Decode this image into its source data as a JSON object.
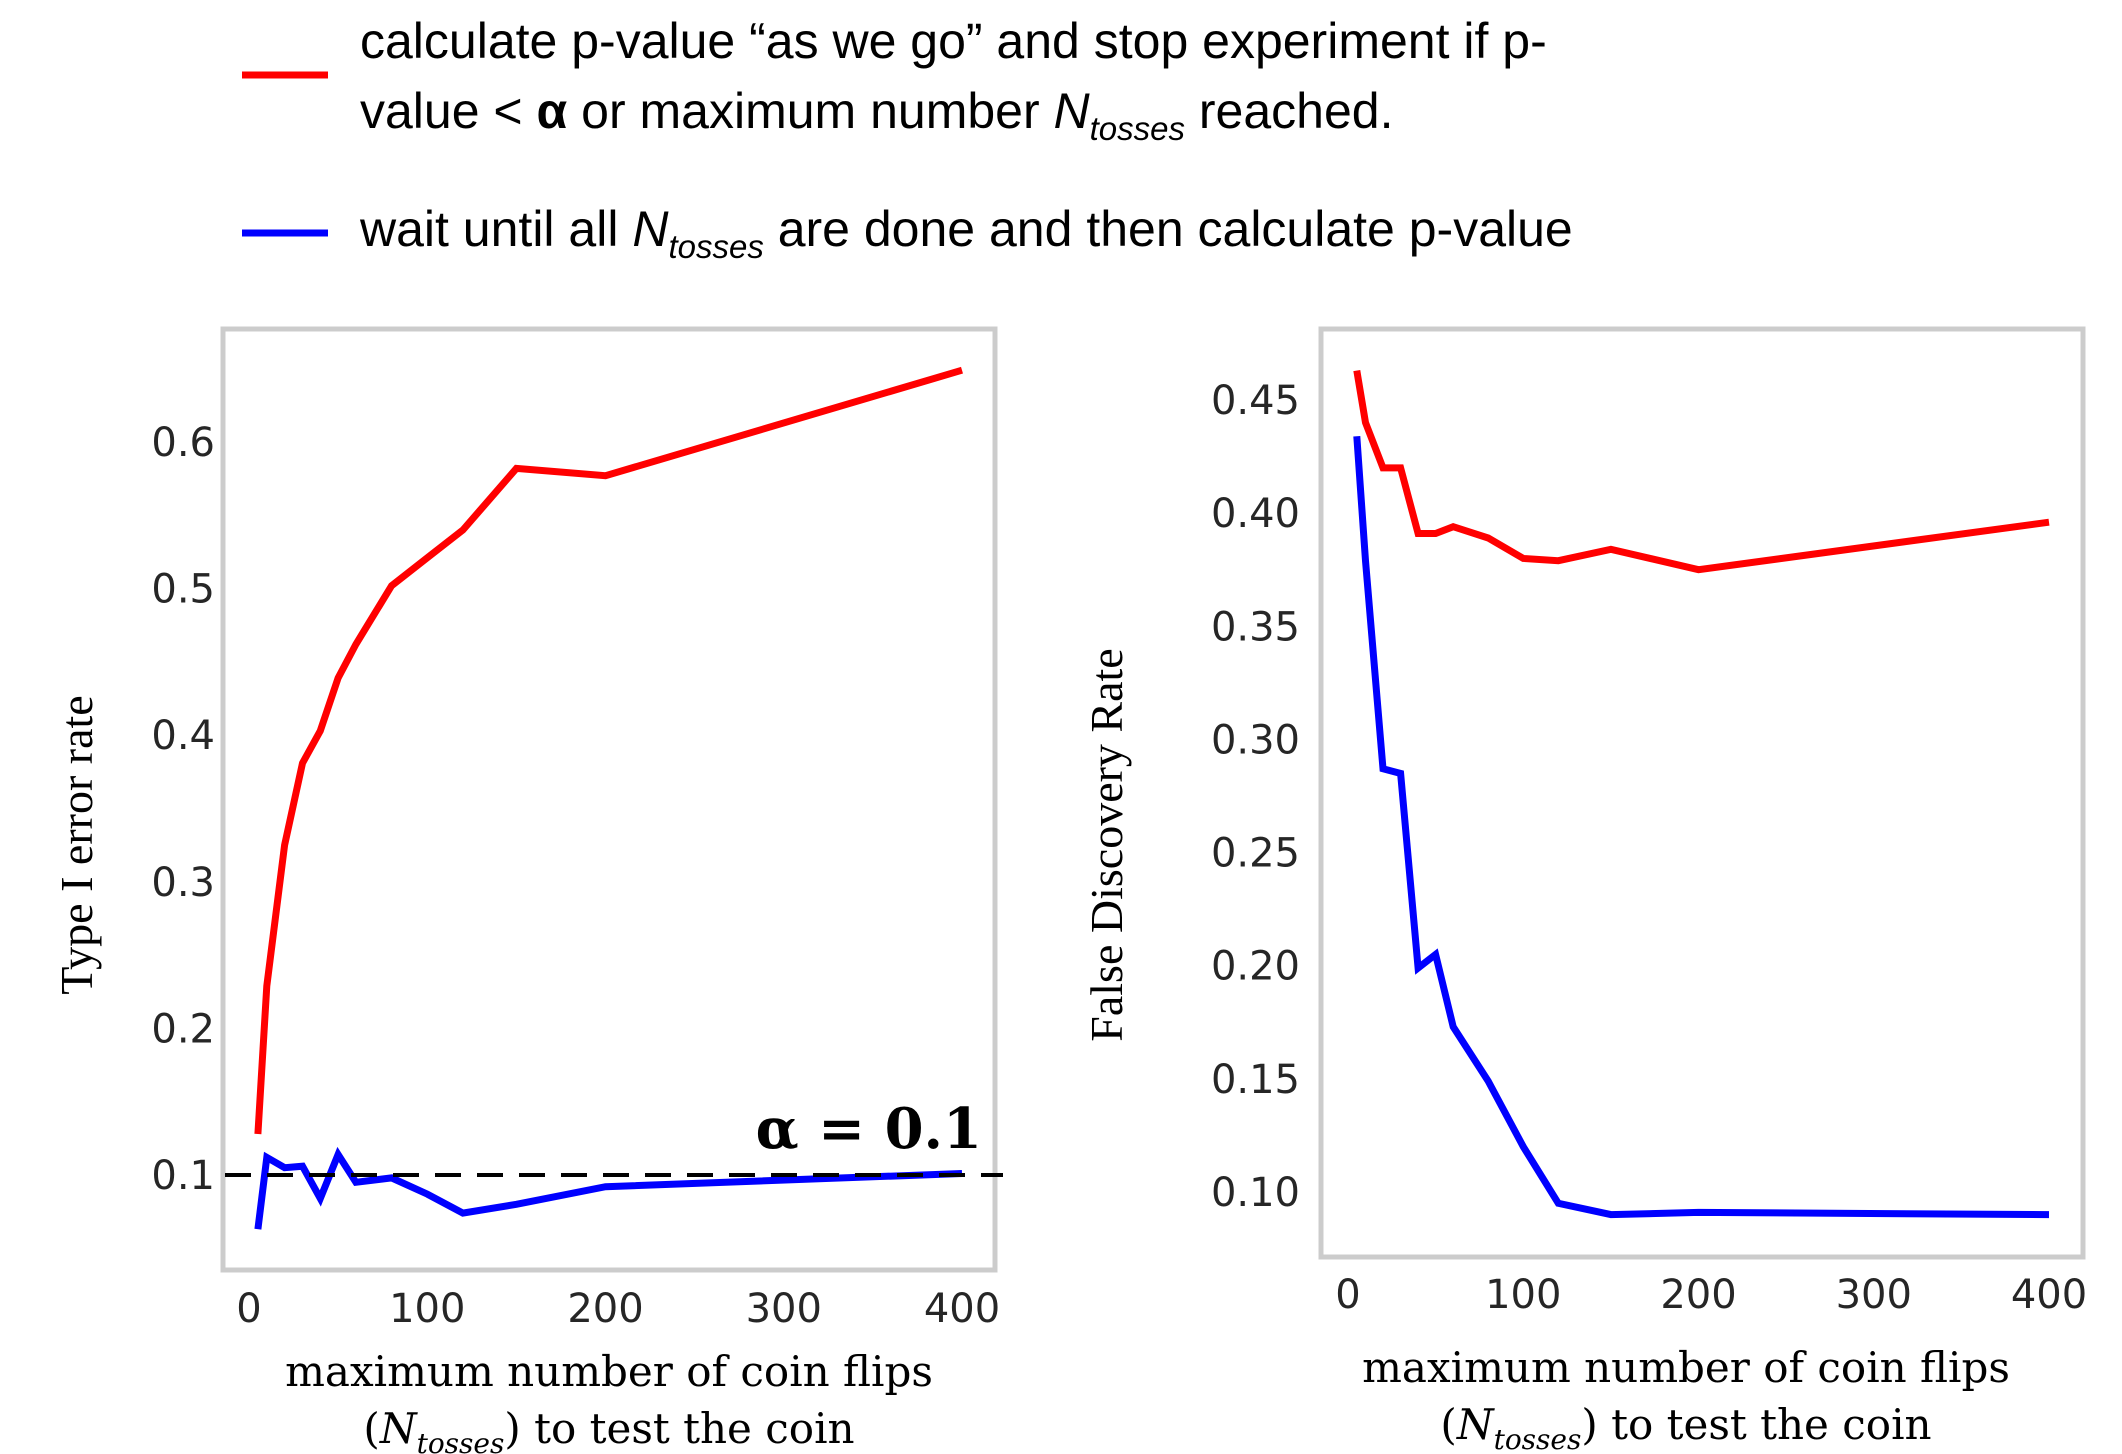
{
  "legend": {
    "items": [
      {
        "color": "#ff0000",
        "line1": "calculate p-value “as we go” and stop experiment if p-",
        "line2_pre": "value < ",
        "line2_alpha": "α",
        "line2_mid": " or maximum number ",
        "line2_N": "N",
        "line2_sub": "tosses",
        "line2_post": " reached."
      },
      {
        "color": "#0000ff",
        "pre": "wait until all ",
        "N": "N",
        "sub": "tosses",
        "post": " are done and then calculate p-value"
      }
    ]
  },
  "chart_data": [
    {
      "type": "line",
      "ylabel": "Type I error rate",
      "xlabel_line1": "maximum number of coin flips",
      "xlabel_line2_pre": "(",
      "xlabel_line2_N": "N",
      "xlabel_line2_sub": "tosses",
      "xlabel_line2_post": ") to test the coin",
      "xlim": [
        0,
        400
      ],
      "ylim": [
        0.04,
        0.68
      ],
      "xticks": [
        0,
        100,
        200,
        300,
        400
      ],
      "xtick_labels": [
        "0",
        "100",
        "200",
        "300",
        "400"
      ],
      "yticks": [
        0.1,
        0.2,
        0.3,
        0.4,
        0.5,
        0.6
      ],
      "ytick_labels": [
        "0.1",
        "0.2",
        "0.3",
        "0.4",
        "0.5",
        "0.6"
      ],
      "grid": false,
      "reference_line": {
        "y": 0.1,
        "style": "dashed",
        "color": "#000000",
        "label": "α = 0.1"
      },
      "x": [
        5,
        10,
        20,
        30,
        40,
        50,
        60,
        80,
        100,
        120,
        150,
        200,
        400
      ],
      "series": [
        {
          "name": "calculate p-value as we go",
          "color": "#ff0000",
          "values": [
            0.128,
            0.229,
            0.325,
            0.381,
            0.403,
            0.439,
            0.462,
            0.502,
            0.521,
            0.54,
            0.582,
            0.577,
            0.649
          ]
        },
        {
          "name": "wait until all tosses done",
          "color": "#0000ff",
          "values": [
            0.063,
            0.112,
            0.105,
            0.106,
            0.084,
            0.114,
            0.095,
            0.098,
            0.087,
            0.074,
            0.08,
            0.092,
            0.101
          ]
        }
      ]
    },
    {
      "type": "line",
      "ylabel": "False Discovery Rate",
      "xlabel_line1": "maximum number of coin flips",
      "xlabel_line2_pre": "(",
      "xlabel_line2_N": "N",
      "xlabel_line2_sub": "tosses",
      "xlabel_line2_post": ") to test the coin",
      "xlim": [
        0,
        400
      ],
      "ylim": [
        0.075,
        0.48
      ],
      "xticks": [
        0,
        100,
        200,
        300,
        400
      ],
      "xtick_labels": [
        "0",
        "100",
        "200",
        "300",
        "400"
      ],
      "yticks": [
        0.1,
        0.15,
        0.2,
        0.25,
        0.3,
        0.35,
        0.4,
        0.45
      ],
      "ytick_labels": [
        "0.10",
        "0.15",
        "0.20",
        "0.25",
        "0.30",
        "0.35",
        "0.40",
        "0.45"
      ],
      "grid": false,
      "x": [
        5,
        10,
        20,
        30,
        40,
        50,
        60,
        80,
        100,
        120,
        150,
        200,
        400
      ],
      "series": [
        {
          "name": "calculate p-value as we go",
          "color": "#ff0000",
          "values": [
            0.463,
            0.44,
            0.42,
            0.42,
            0.391,
            0.391,
            0.394,
            0.389,
            0.38,
            0.379,
            0.384,
            0.375,
            0.396
          ]
        },
        {
          "name": "wait until all tosses done",
          "color": "#0000ff",
          "values": [
            0.434,
            0.379,
            0.287,
            0.285,
            0.199,
            0.205,
            0.173,
            0.149,
            0.12,
            0.095,
            0.09,
            0.091,
            0.09
          ]
        }
      ]
    }
  ]
}
